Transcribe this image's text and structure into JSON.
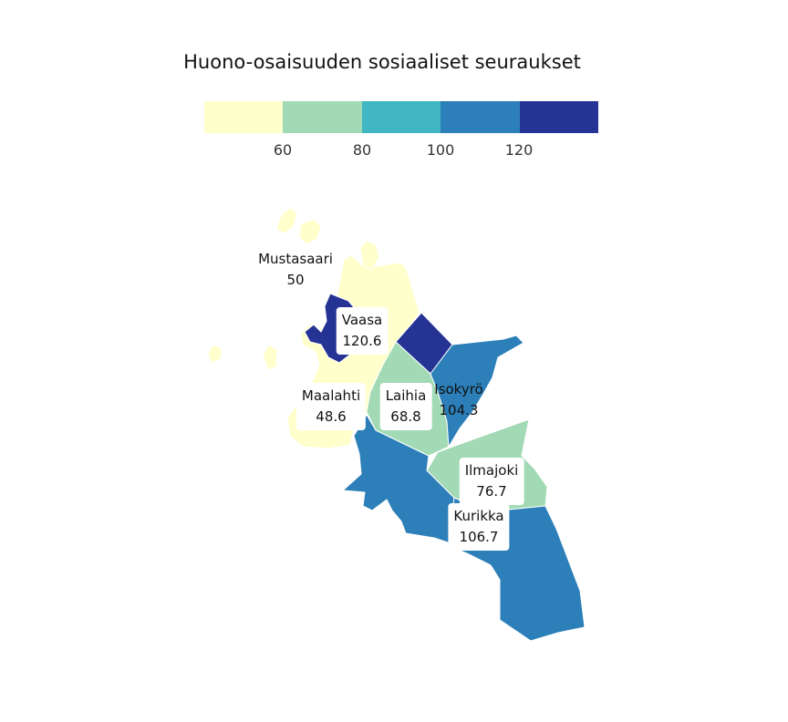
{
  "title": "Huono-osaisuuden sosiaaliset seuraukset",
  "legend": {
    "colors": [
      "#ffffcc",
      "#a1dab4",
      "#41b6c4",
      "#2c7fb8",
      "#253494"
    ],
    "ticks": [
      "60",
      "80",
      "100",
      "120"
    ]
  },
  "regions": [
    {
      "name": "Mustasaari",
      "value": "50",
      "color": "#ffffcc"
    },
    {
      "name": "Vaasa",
      "value": "120.6",
      "color": "#253494"
    },
    {
      "name": "Maalahti",
      "value": "48.6",
      "color": "#ffffcc"
    },
    {
      "name": "Laihia",
      "value": "68.8",
      "color": "#a1dab4"
    },
    {
      "name": "Isokyrö",
      "value": "104.3",
      "color": "#2c7fb8"
    },
    {
      "name": "Ilmajoki",
      "value": "76.7",
      "color": "#a1dab4"
    },
    {
      "name": "Kurikka",
      "value": "106.7",
      "color": "#2c7fb8"
    }
  ]
}
